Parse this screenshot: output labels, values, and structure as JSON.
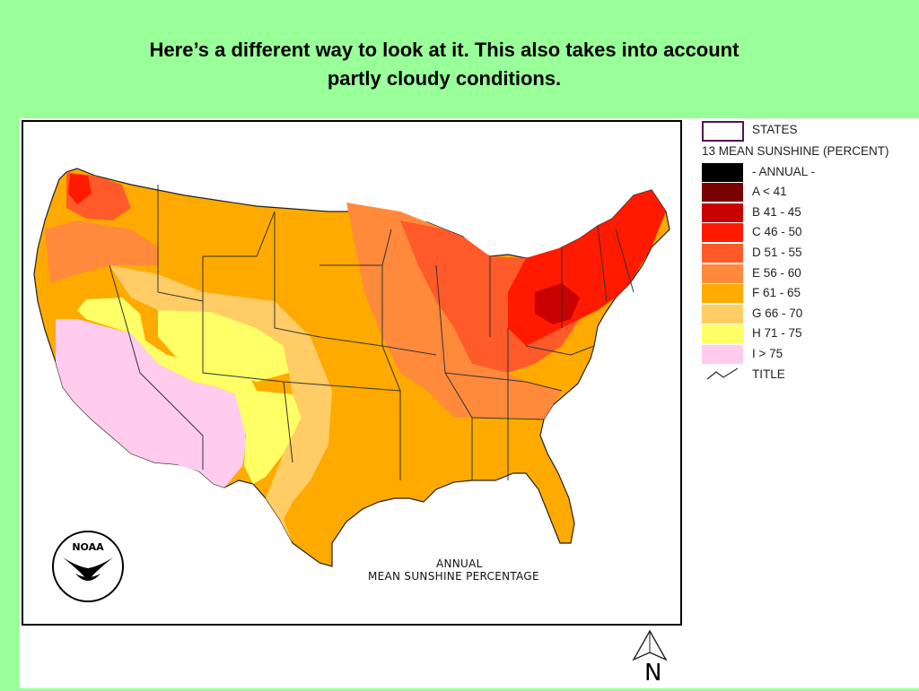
{
  "slide": {
    "title_line1": "Here’s a different way to look at it.  This also takes into account",
    "title_line2": "partly cloudy conditions."
  },
  "map": {
    "caption_line1": "ANNUAL",
    "caption_line2": "MEAN SUNSHINE PERCENTAGE",
    "logo_text": "NOAA",
    "north_label": "N"
  },
  "legend": {
    "states_label": "STATES",
    "layer_title": "13 MEAN SUNSHINE (PERCENT)",
    "items": [
      {
        "label": "- ANNUAL -",
        "color": "#000000"
      },
      {
        "label": "A < 41",
        "color": "#7a0000"
      },
      {
        "label": "B 41 - 45",
        "color": "#c80000"
      },
      {
        "label": "C 46 - 50",
        "color": "#ff1a00"
      },
      {
        "label": "D 51 - 55",
        "color": "#ff5a2a"
      },
      {
        "label": "E 56 - 60",
        "color": "#ff8a3c"
      },
      {
        "label": "F 61 - 65",
        "color": "#ffaa00"
      },
      {
        "label": "G 66 - 70",
        "color": "#ffcc66"
      },
      {
        "label": "H 71 - 75",
        "color": "#ffff66"
      },
      {
        "label": "I > 75",
        "color": "#ffccee"
      }
    ],
    "title_item_label": "TITLE",
    "title_item_icon": "line-sample-icon"
  }
}
